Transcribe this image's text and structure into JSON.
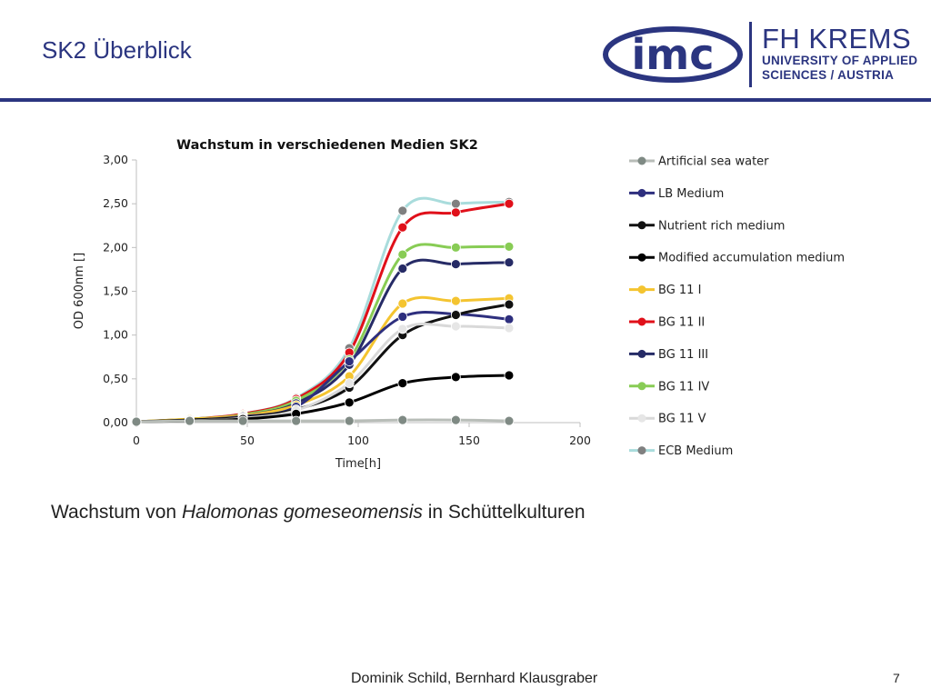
{
  "slide": {
    "title": "SK2 Überblick",
    "caption_prefix": "Wachstum von ",
    "caption_italic": "Halomonas gomeseomensis",
    "caption_suffix": " in Schüttelkulturen",
    "footer": "Dominik Schild, Bernhard Klausgraber",
    "page_number": "7"
  },
  "logos": {
    "imc_text": "imc",
    "fh_main": "FH KREMS",
    "fh_sub1": "UNIVERSITY OF APPLIED",
    "fh_sub2": "SCIENCES / AUSTRIA",
    "brand_color": "#2b3580"
  },
  "chart_data": {
    "type": "line",
    "title": "Wachstum in verschiedenen Medien SK2",
    "xlabel": "Time[h]",
    "ylabel": "OD 600nm []",
    "xlim": [
      0,
      200
    ],
    "ylim": [
      0,
      3
    ],
    "xticks": [
      0,
      50,
      100,
      150,
      200
    ],
    "yticks": [
      "0,00",
      "0,50",
      "1,00",
      "1,50",
      "2,00",
      "2,50",
      "3,00"
    ],
    "grid": false,
    "legend_position": "right",
    "x": [
      0,
      24,
      48,
      72,
      96,
      120,
      144,
      168
    ],
    "series": [
      {
        "name": "Artificial sea water",
        "color": "#b8bdb8",
        "marker_color": "#7f8a84",
        "values": [
          0.01,
          0.02,
          0.02,
          0.02,
          0.02,
          0.03,
          0.03,
          0.02
        ]
      },
      {
        "name": "LB Medium",
        "color": "#2e2f7e",
        "marker_color": "#2e2f7e",
        "values": [
          0.01,
          0.03,
          0.07,
          0.18,
          0.7,
          1.21,
          1.24,
          1.18
        ]
      },
      {
        "name": "Nutrient rich medium",
        "color": "#111111",
        "marker_color": "#111111",
        "values": [
          0.01,
          0.03,
          0.06,
          0.15,
          0.4,
          1.0,
          1.23,
          1.35
        ]
      },
      {
        "name": "Modified accumulation medium",
        "color": "#000000",
        "marker_color": "#000000",
        "values": [
          0.01,
          0.02,
          0.04,
          0.1,
          0.23,
          0.45,
          0.52,
          0.54
        ]
      },
      {
        "name": "BG 11 I",
        "color": "#f4c430",
        "marker_color": "#f4c430",
        "values": [
          0.01,
          0.04,
          0.08,
          0.2,
          0.53,
          1.36,
          1.39,
          1.42
        ]
      },
      {
        "name": "BG 11 II",
        "color": "#e0101a",
        "marker_color": "#e0101a",
        "values": [
          0.01,
          0.04,
          0.1,
          0.27,
          0.8,
          2.23,
          2.4,
          2.5
        ]
      },
      {
        "name": "BG 11 III",
        "color": "#262b66",
        "marker_color": "#262b66",
        "values": [
          0.01,
          0.03,
          0.08,
          0.22,
          0.66,
          1.76,
          1.81,
          1.83
        ]
      },
      {
        "name": "BG 11 IV",
        "color": "#88cc55",
        "marker_color": "#88cc55",
        "values": [
          0.01,
          0.04,
          0.09,
          0.25,
          0.72,
          1.92,
          2.0,
          2.01
        ]
      },
      {
        "name": "BG 11 V",
        "color": "#d9d9d9",
        "marker_color": "#e6e6e6",
        "values": [
          0.01,
          0.02,
          0.05,
          0.14,
          0.45,
          1.07,
          1.1,
          1.08
        ]
      },
      {
        "name": "ECB Medium",
        "color": "#a9dcdc",
        "marker_color": "#808080",
        "values": [
          0.01,
          0.04,
          0.1,
          0.28,
          0.85,
          2.42,
          2.5,
          2.52
        ]
      }
    ]
  }
}
